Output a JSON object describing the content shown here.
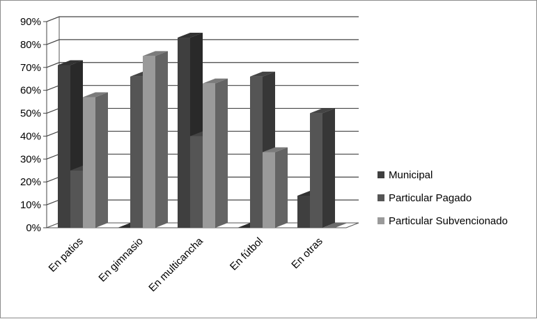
{
  "chart_data": {
    "type": "bar",
    "categories": [
      "En patios",
      "En gimnasio",
      "En multicancha",
      "En fútbol",
      "En otras"
    ],
    "series": [
      {
        "name": "Municipal",
        "values": [
          71,
          0,
          83,
          0,
          14
        ],
        "color": "#3f3f3f"
      },
      {
        "name": "Particular Pagado",
        "values": [
          25,
          66,
          40,
          66,
          50
        ],
        "color": "#555555"
      },
      {
        "name": "Particular Subvencionado",
        "values": [
          57,
          75,
          63,
          33,
          0
        ],
        "color": "#9a9a9a"
      }
    ],
    "y_ticks": [
      "0%",
      "10%",
      "20%",
      "30%",
      "40%",
      "50%",
      "60%",
      "70%",
      "80%",
      "90%"
    ],
    "ylim": [
      0,
      90
    ],
    "grid": true,
    "legend": "right",
    "style": "3d-clustered-column"
  }
}
